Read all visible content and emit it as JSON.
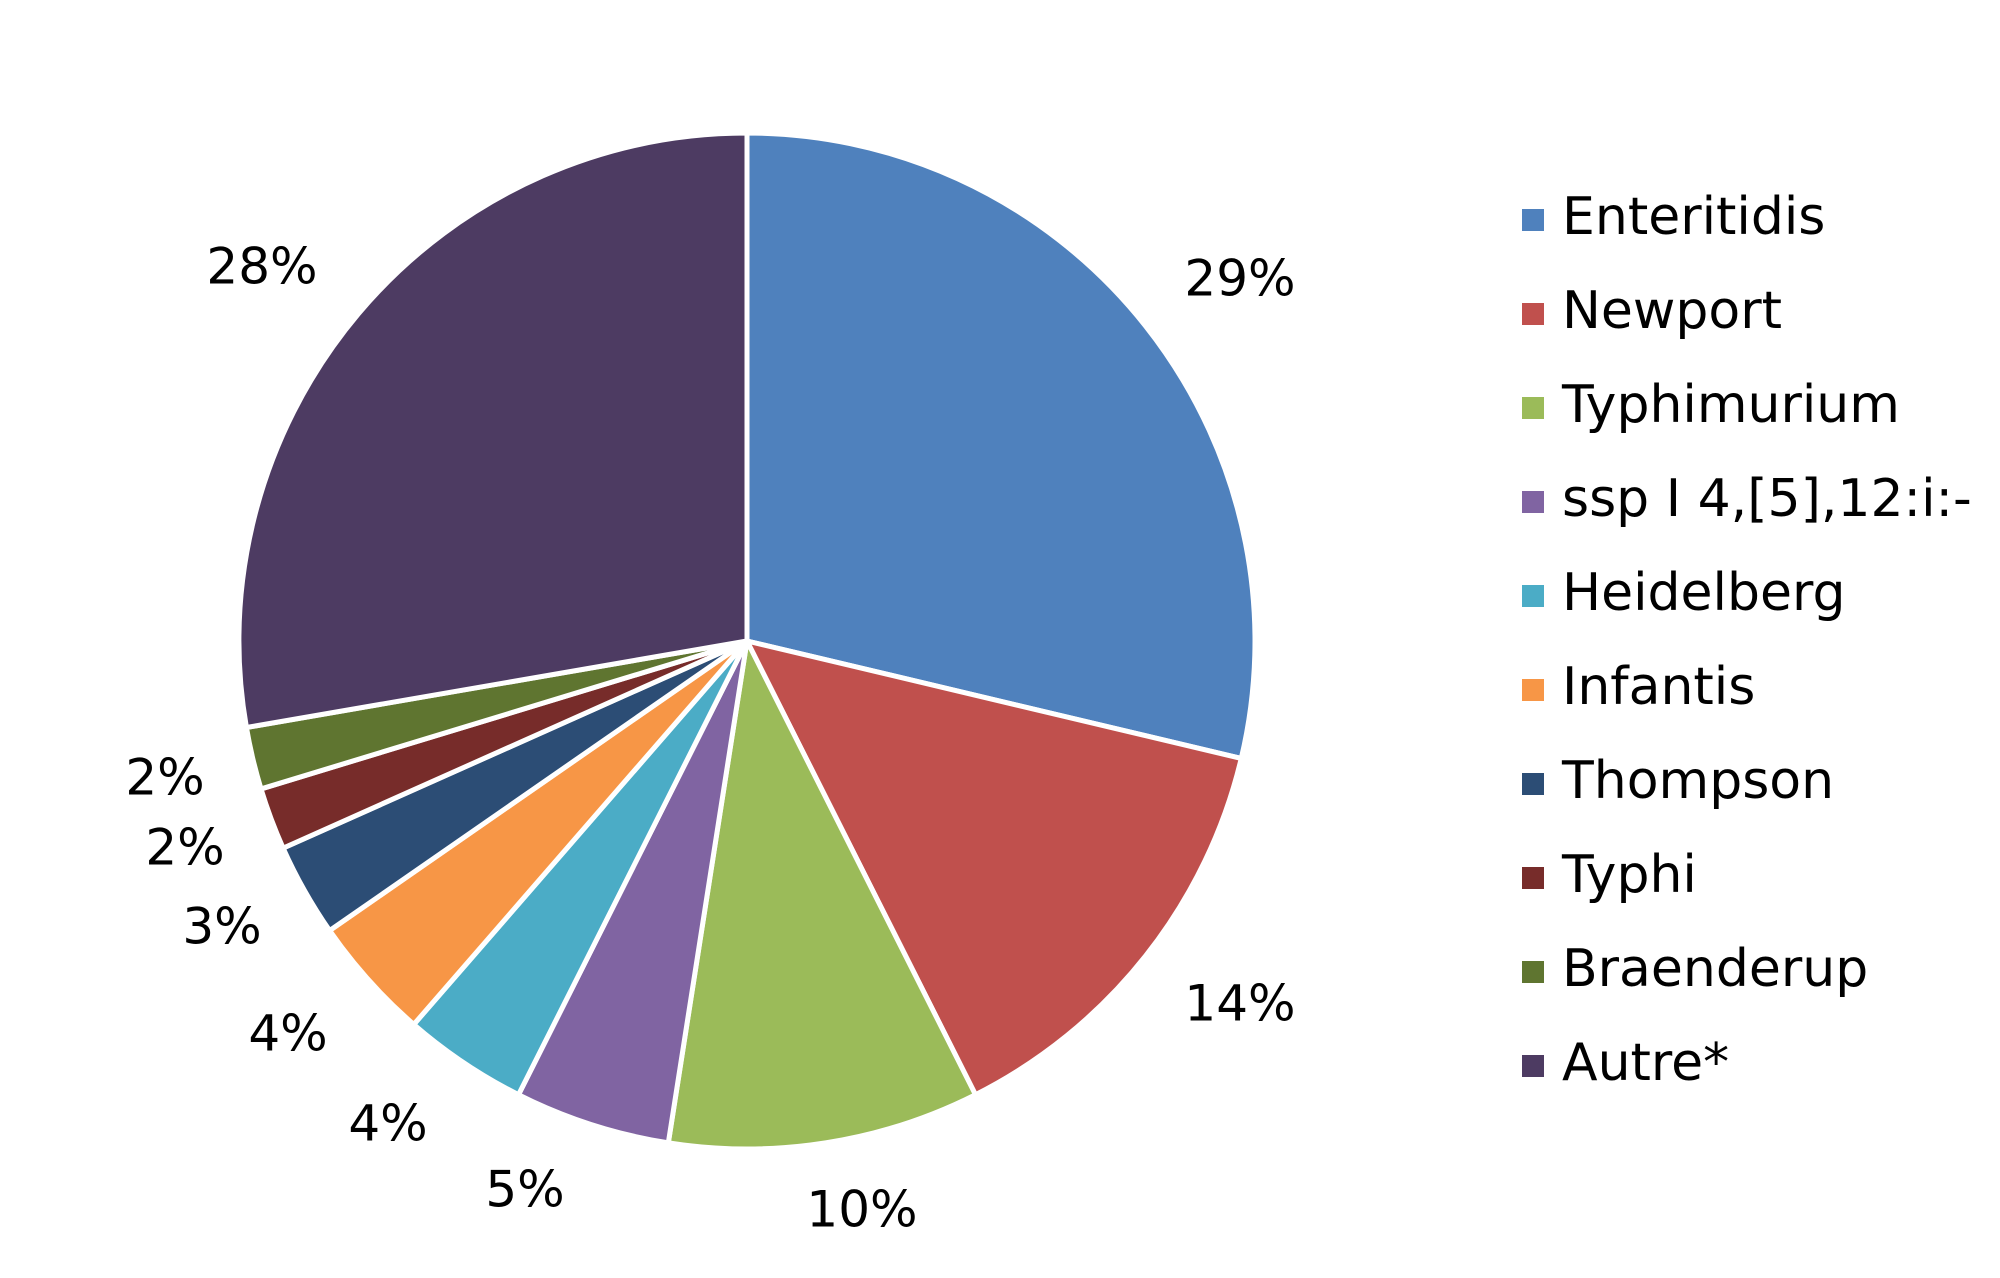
{
  "chart_data": {
    "type": "pie",
    "title": "",
    "legend_position": "right",
    "slices": [
      {
        "label": "Enteritidis",
        "value": 29,
        "display": "29%",
        "color": "#4F81BD"
      },
      {
        "label": "Newport",
        "value": 14,
        "display": "14%",
        "color": "#C0504D"
      },
      {
        "label": "Typhimurium",
        "value": 10,
        "display": "10%",
        "color": "#9BBB59"
      },
      {
        "label": "ssp I 4,[5],12:i:-",
        "value": 5,
        "display": "5%",
        "color": "#8064A2"
      },
      {
        "label": "Heidelberg",
        "value": 4,
        "display": "4%",
        "color": "#4BACC6"
      },
      {
        "label": "Infantis",
        "value": 4,
        "display": "4%",
        "color": "#F79646"
      },
      {
        "label": "Thompson",
        "value": 3,
        "display": "3%",
        "color": "#2C4D75"
      },
      {
        "label": "Typhi",
        "value": 2,
        "display": "2%",
        "color": "#772C2A"
      },
      {
        "label": "Braenderup",
        "value": 2,
        "display": "2%",
        "color": "#5F7530"
      },
      {
        "label": "Autre*",
        "value": 28,
        "display": "28%",
        "color": "#4D3B62"
      }
    ]
  }
}
